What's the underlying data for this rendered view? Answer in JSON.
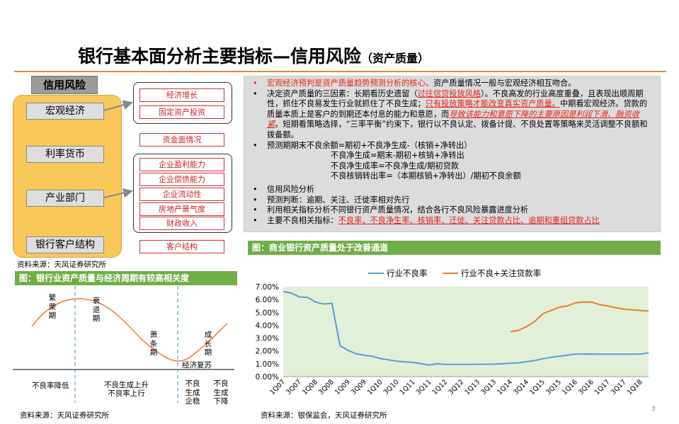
{
  "title": {
    "main": "银行基本面分析主要指标—信用风险",
    "sub": "（资产质量）"
  },
  "left_diagram": {
    "tag": "信用风险",
    "categories": [
      "宏观经济",
      "利率货币",
      "产业部门",
      "银行客户结构"
    ],
    "macro_items": [
      "经济增长",
      "固定资产投资"
    ],
    "money_item": "资金面情况",
    "industry_items": [
      "企业盈利能力",
      "企业偿债能力",
      "企业流动性",
      "房地产景气度",
      "财政收入"
    ],
    "customer_item": "客户结构"
  },
  "notes": {
    "bullet": "•",
    "p1_red": "宏观经济预判是资产质量趋势预测分析的核心。",
    "p1_rest": "资产质量情况一般与宏观经济相互吻合。",
    "p2_a": "决定资产质量的三因素：长期看历史遗留（",
    "p2_red1": "过往信贷投放风格",
    "p2_b": "）。不良高发的行业高度重叠，且表现出顺周期性，抓住不良易发生行业就抓住了不良生成；",
    "p2_red2": "只有投放策略才能改变真实资产质量。",
    "p2_c": "中期看宏观经济。贷款的质量本质上是客户的到期还本付息的能力和意愿，而",
    "p2_red3": "导致该能力和意愿下降的主要原因是利润下滑、融资收紧",
    "p2_d": "。短期看策略选择，“三率平衡”约束下，银行以不良认定、拨备计提、不良处置等策略来灵活调整不良额和拨备额。",
    "p3": "预测期期末不良余额=期初+不良净生成-（核销+净转出）",
    "p3_f1": "不良净生成=期末-期初+核销+净转出",
    "p3_f2": "不良净生成率=不良净生成/期初贷款",
    "p3_f3": "不良核销转出率=（本期核销+净转出）/期初不良余额",
    "p4": "信用风险分析",
    "p5": "预测判断：逾期、关注、迁徙率相对先行",
    "p6": "利用相关指标分析不同银行资产质量情况，结合各行不良风险暴露进度分析",
    "p7_a": "主要不良相关指标：",
    "p7_red": "不良率、不良净生率、核销率、迁徙、关注贷款占比、逾期和重组贷款占比"
  },
  "left_chart": {
    "header": "图：银行业资产质量与经济周期有较高相关度",
    "phase1": "繁荣期",
    "phase2": "衰退期",
    "phase3": "萧条期",
    "phase4": "成长期",
    "recovery": "经济复苏",
    "bottom1": "不良率降低",
    "bottom2a": "不良生成上升",
    "bottom2b": "不良率上行",
    "bottom3": "不良生成企稳",
    "bottom4": "不良生成下降",
    "source": "资料来源：天风证券研究所",
    "source_top": "资料来源：天风证券研究所"
  },
  "right_chart": {
    "header": "图：商业银行资产质量处于改善通道",
    "source": "资料来源：银保监会，天风证券研究所"
  },
  "chart_data": {
    "type": "line",
    "x": [
      "1Q07",
      "2Q07",
      "3Q07",
      "4Q07",
      "1Q08",
      "2Q08",
      "3Q08",
      "4Q08",
      "1Q09",
      "2Q09",
      "3Q09",
      "4Q09",
      "1Q10",
      "2Q10",
      "3Q10",
      "4Q10",
      "1Q11",
      "2Q11",
      "3Q11",
      "4Q11",
      "1Q12",
      "2Q12",
      "3Q12",
      "4Q12",
      "1Q13",
      "2Q13",
      "3Q13",
      "4Q13",
      "1Q14",
      "2Q14",
      "3Q14",
      "4Q14",
      "1Q15",
      "2Q15",
      "3Q15",
      "4Q15",
      "1Q16",
      "2Q16",
      "3Q16",
      "4Q16",
      "1Q17",
      "2Q17",
      "3Q17",
      "4Q17",
      "1Q18",
      "2Q18"
    ],
    "x_tick_labels": [
      "1Q07",
      "3Q07",
      "1Q08",
      "3Q08",
      "1Q09",
      "3Q09",
      "1Q10",
      "3Q10",
      "1Q11",
      "3Q11",
      "1Q12",
      "3Q12",
      "1Q13",
      "3Q13",
      "1Q14",
      "3Q14",
      "1Q15",
      "3Q15",
      "1Q16",
      "3Q16",
      "1Q17",
      "3Q17",
      "1Q18"
    ],
    "y_ticks": [
      "0.00%",
      "1.00%",
      "2.00%",
      "3.00%",
      "4.00%",
      "5.00%",
      "6.00%",
      "7.00%"
    ],
    "ylim": [
      0,
      7
    ],
    "series": [
      {
        "name": "行业不良率",
        "color": "#5b9bd5",
        "values": [
          6.63,
          6.5,
          6.2,
          6.17,
          5.8,
          5.65,
          5.7,
          2.4,
          2.04,
          1.77,
          1.66,
          1.58,
          1.4,
          1.3,
          1.2,
          1.14,
          1.1,
          1.0,
          0.9,
          1.0,
          0.94,
          0.95,
          0.95,
          0.95,
          0.96,
          0.96,
          0.97,
          1.0,
          1.04,
          1.07,
          1.16,
          1.25,
          1.39,
          1.5,
          1.59,
          1.67,
          1.75,
          1.75,
          1.76,
          1.74,
          1.74,
          1.74,
          1.74,
          1.74,
          1.75,
          1.86
        ]
      },
      {
        "name": "行业不良+关注贷款率",
        "color": "#ed7d31",
        "values": [
          null,
          null,
          null,
          null,
          null,
          null,
          null,
          null,
          null,
          null,
          null,
          null,
          null,
          null,
          null,
          null,
          null,
          null,
          null,
          null,
          null,
          null,
          null,
          null,
          null,
          null,
          null,
          null,
          3.5,
          3.6,
          3.9,
          4.3,
          4.9,
          5.15,
          5.4,
          5.5,
          5.75,
          5.8,
          5.8,
          5.6,
          5.5,
          5.35,
          5.25,
          5.2,
          5.15,
          5.1
        ]
      }
    ]
  },
  "page_number": "7"
}
